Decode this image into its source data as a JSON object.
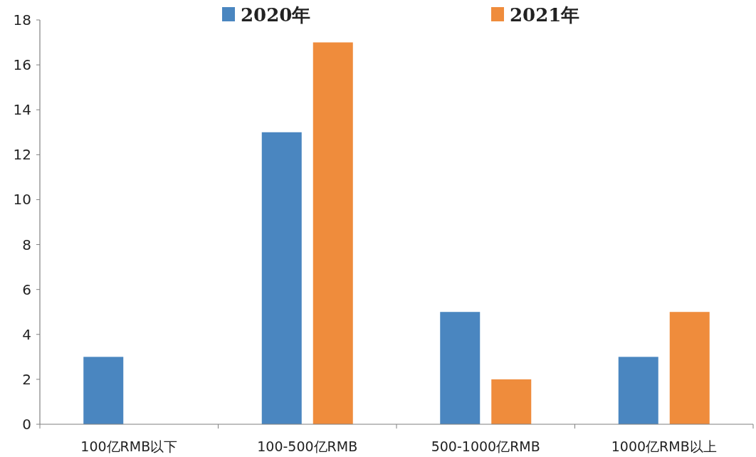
{
  "chart_data": {
    "type": "bar",
    "categories": [
      "100亿RMB以下",
      "100-500亿RMB",
      "500-1000亿RMB",
      "1000亿RMB以上"
    ],
    "series": [
      {
        "name": "2020年",
        "color": "#4a86c0",
        "values": [
          3,
          13,
          5,
          3
        ]
      },
      {
        "name": "2021年",
        "color": "#ef8c3c",
        "values": [
          null,
          17,
          2,
          5
        ]
      }
    ],
    "ylim": [
      0,
      18
    ],
    "yticks": [
      0,
      2,
      4,
      6,
      8,
      10,
      12,
      14,
      16,
      18
    ],
    "grid": false,
    "legend": "top"
  }
}
